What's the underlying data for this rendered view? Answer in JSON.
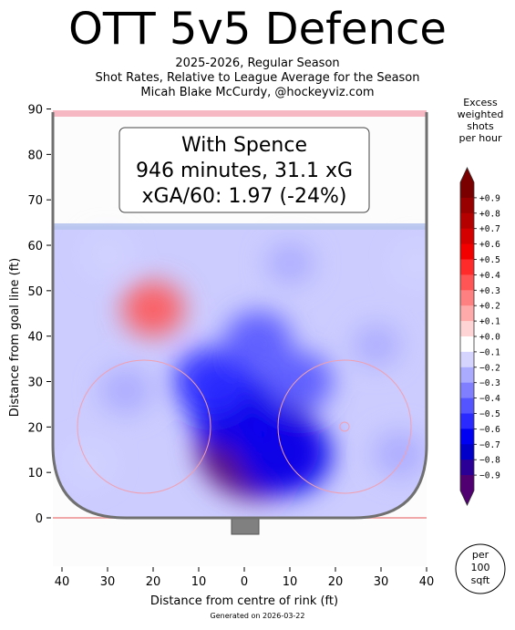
{
  "header": {
    "title": "OTT 5v5 Defence",
    "subtitle_line1": "2025-2026, Regular Season",
    "subtitle_line2": "Shot Rates, Relative to League Average for the Season",
    "subtitle_line3": "Micah Blake McCurdy, @hockeyviz.com"
  },
  "annotation": {
    "line1": "With Spence",
    "line2": "946 minutes, 31.1 xG",
    "line3": "xGA/60: 1.97 (-24%)"
  },
  "colorbar": {
    "title_lines": [
      "Excess",
      "weighted",
      "shots",
      "per hour"
    ],
    "ticks": [
      "+0.9",
      "+0.8",
      "+0.7",
      "+0.6",
      "+0.5",
      "+0.4",
      "+0.3",
      "+0.2",
      "+0.1",
      "+0.0",
      "−0.1",
      "−0.2",
      "−0.3",
      "−0.4",
      "−0.5",
      "−0.6",
      "−0.7",
      "−0.8",
      "−0.9"
    ],
    "colors": [
      "#7a0000",
      "#980000",
      "#b50000",
      "#d40000",
      "#f20000",
      "#ff2a2a",
      "#ff5555",
      "#ff8080",
      "#ffaaaa",
      "#ffd4d4",
      "#ffffff",
      "#d4d4ff",
      "#aaaaff",
      "#8080ff",
      "#5555ff",
      "#2a2aff",
      "#0000f2",
      "#0000c8",
      "#2a0096",
      "#500070"
    ]
  },
  "badge": {
    "lines": [
      "per",
      "100",
      "sqft"
    ]
  },
  "footer": {
    "generated": "Generated on 2026-03-22"
  },
  "chart_data": {
    "type": "heatmap",
    "title": "OTT 5v5 Defence",
    "xlabel": "Distance from centre of rink (ft)",
    "ylabel": "Distance from goal line (ft)",
    "xlim": [
      -42,
      42
    ],
    "ylim": [
      -11,
      90
    ],
    "x_ticks": [
      "40",
      "30",
      "20",
      "10",
      "0",
      "10",
      "20",
      "30",
      "40"
    ],
    "x_tick_values": [
      -40,
      -30,
      -20,
      -10,
      0,
      10,
      20,
      30,
      40
    ],
    "y_ticks": [
      "0",
      "10",
      "20",
      "30",
      "40",
      "50",
      "60",
      "70",
      "80",
      "90"
    ],
    "y_tick_values": [
      0,
      10,
      20,
      30,
      40,
      50,
      60,
      70,
      80,
      90
    ],
    "value_label": "Excess weighted shots per hour (per 100 sqft)",
    "value_range": [
      -0.9,
      0.9
    ],
    "hotspots": [
      {
        "x": 3,
        "y": 16,
        "value": -0.9
      },
      {
        "x": -2,
        "y": 24,
        "value": -0.6
      },
      {
        "x": 9,
        "y": 14,
        "value": -0.6
      },
      {
        "x": -7,
        "y": 30,
        "value": -0.45
      },
      {
        "x": 12,
        "y": 30,
        "value": -0.35
      },
      {
        "x": 3,
        "y": 39,
        "value": -0.35
      },
      {
        "x": -26,
        "y": 28,
        "value": -0.2
      },
      {
        "x": 29,
        "y": 38,
        "value": -0.15
      },
      {
        "x": 34,
        "y": 14,
        "value": -0.2
      },
      {
        "x": -20,
        "y": 46,
        "value": 0.3
      },
      {
        "x": -30,
        "y": 58,
        "value": -0.1
      },
      {
        "x": 10,
        "y": 56,
        "value": -0.15
      },
      {
        "x": -34,
        "y": 12,
        "value": -0.1
      },
      {
        "x": 38,
        "y": 56,
        "value": -0.1
      }
    ]
  }
}
